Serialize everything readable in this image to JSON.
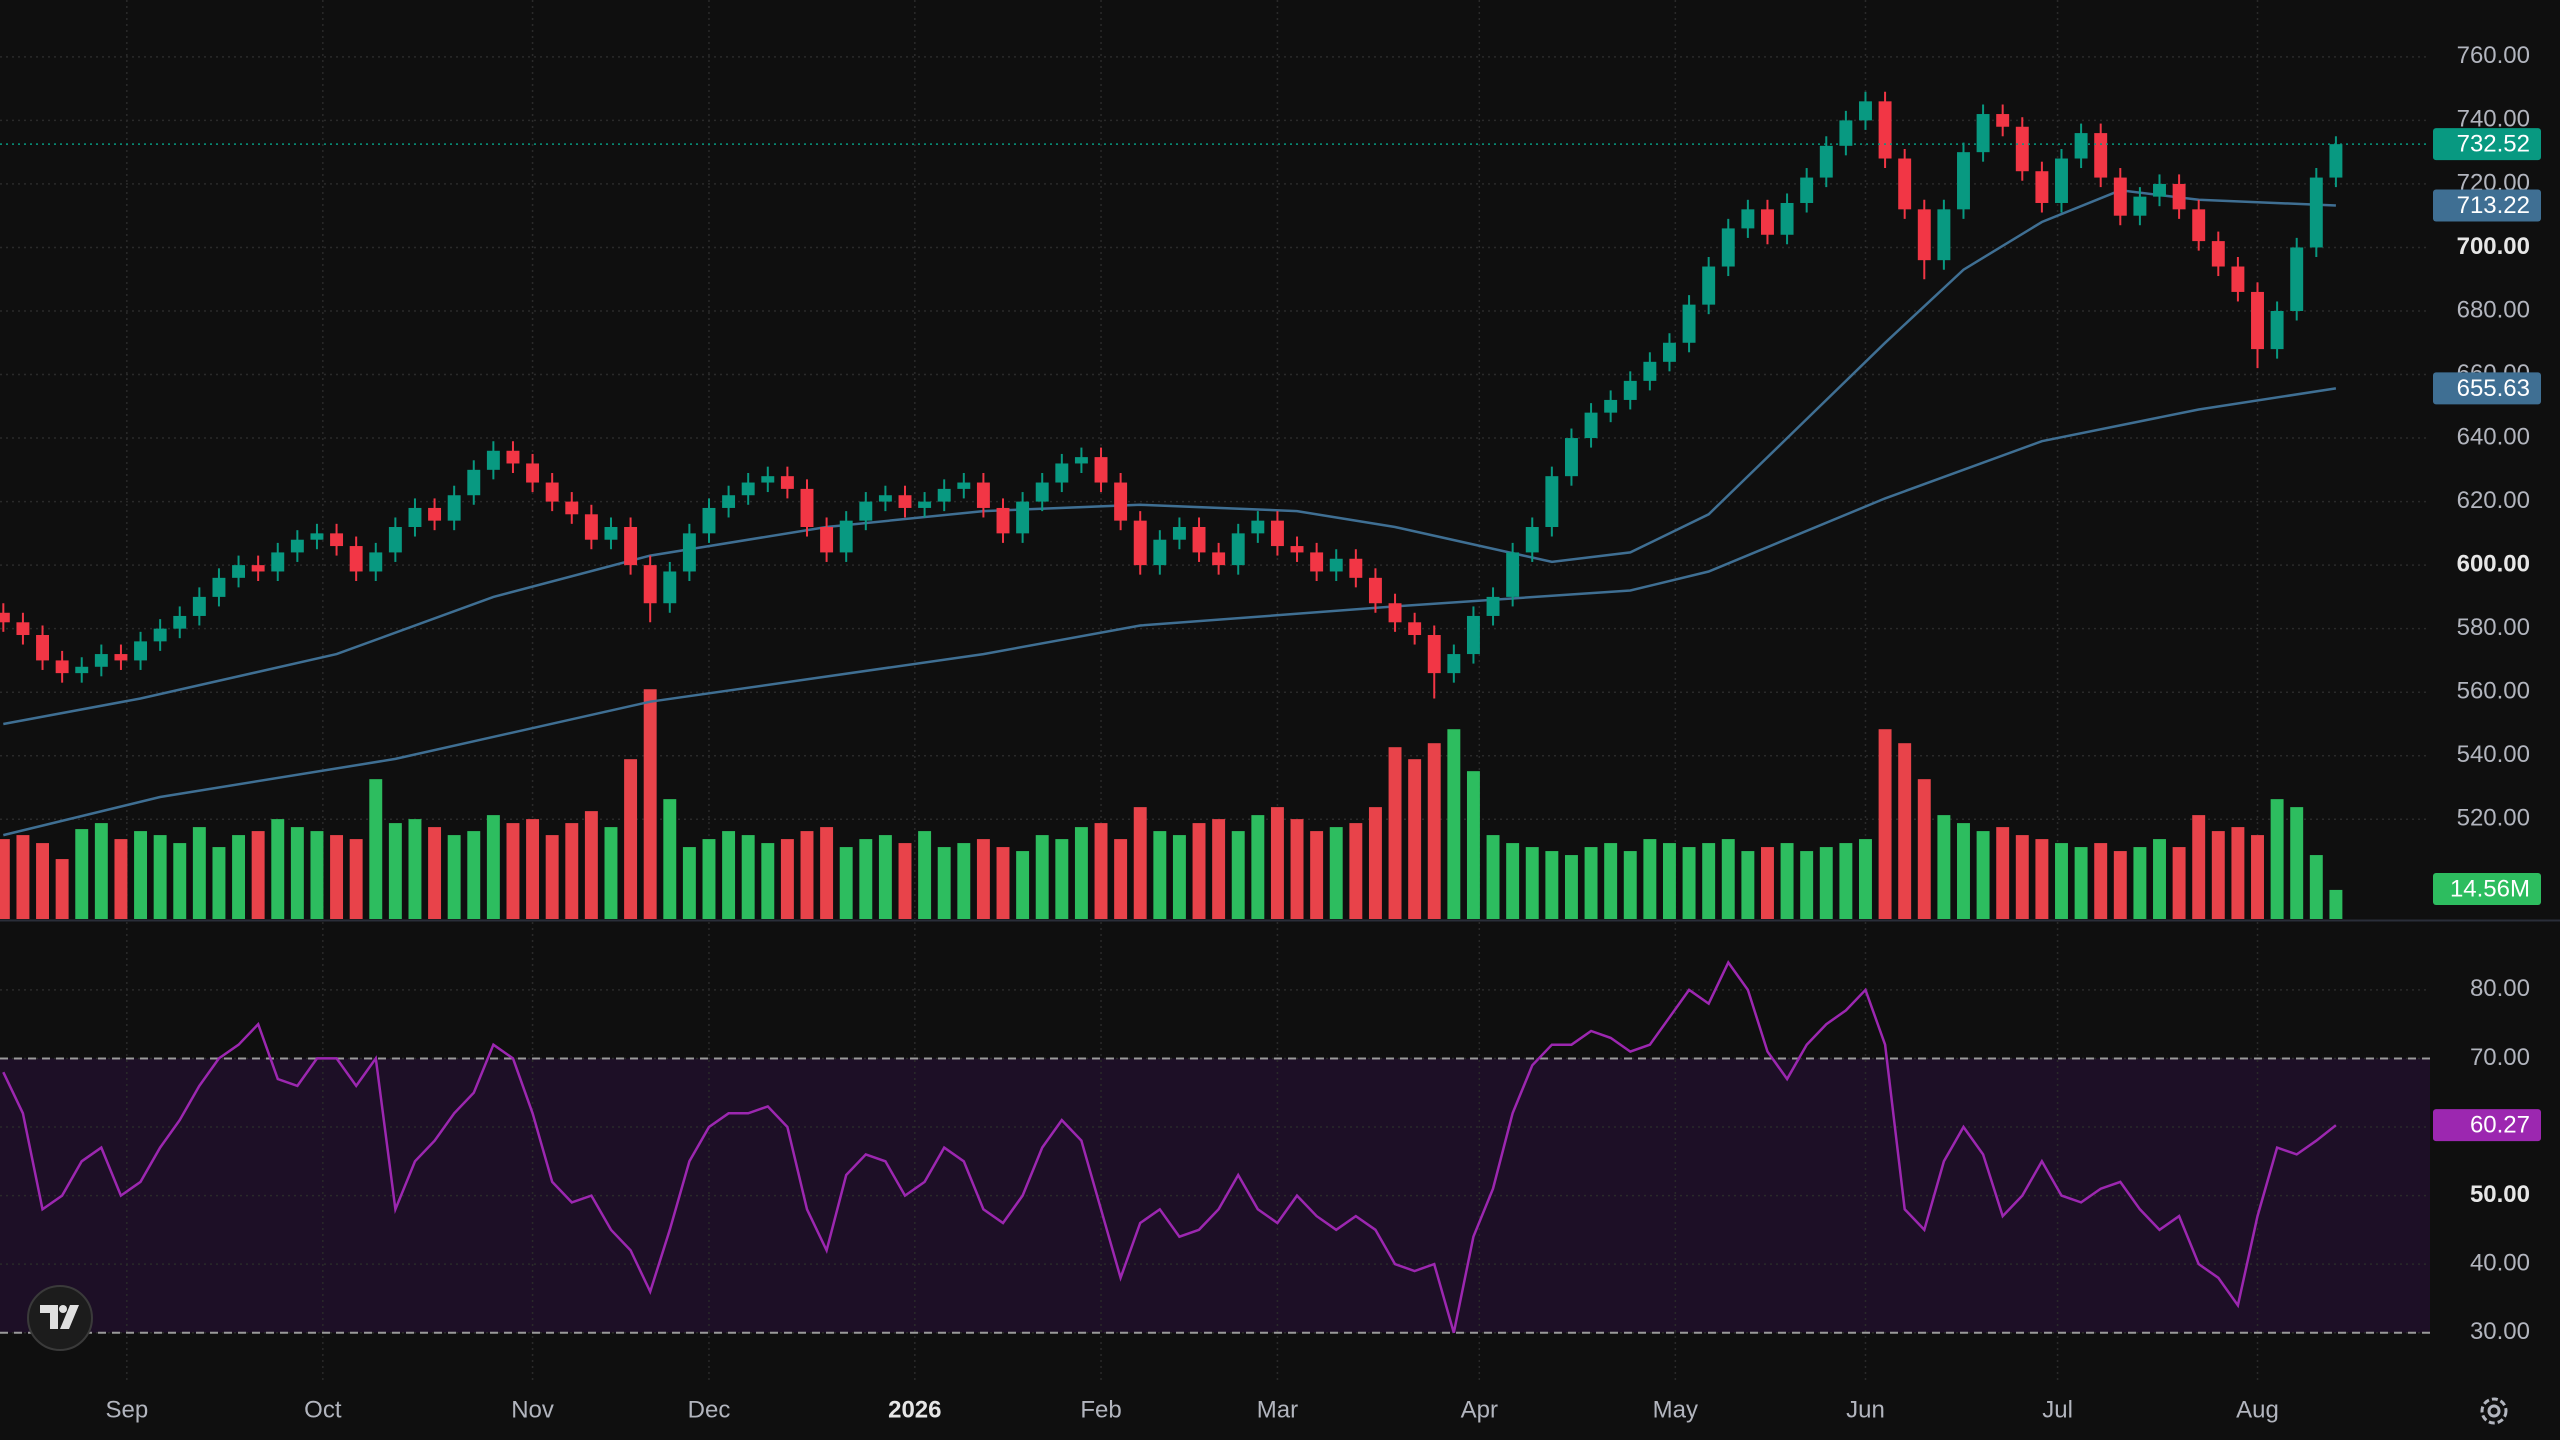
{
  "chart_data": [
    {
      "type": "candlestick",
      "open": [
        585,
        582,
        578,
        570,
        566,
        568,
        572,
        570,
        576,
        580,
        584,
        590,
        596,
        600,
        598,
        604,
        608,
        610,
        606,
        598,
        604,
        612,
        618,
        614,
        622,
        630,
        636,
        632,
        626,
        620,
        616,
        608,
        612,
        600,
        588,
        598,
        610,
        618,
        622,
        626,
        628,
        624,
        612,
        604,
        614,
        620,
        622,
        618,
        620,
        624,
        626,
        618,
        610,
        620,
        626,
        632,
        634,
        626,
        614,
        600,
        608,
        612,
        604,
        600,
        610,
        614,
        606,
        604,
        598,
        602,
        596,
        588,
        582,
        578,
        566,
        572,
        584,
        590,
        604,
        612,
        628,
        640,
        648,
        652,
        658,
        664,
        670,
        682,
        694,
        706,
        712,
        704,
        714,
        722,
        732,
        740,
        746,
        728,
        712,
        696,
        712,
        730,
        742,
        738,
        724,
        714,
        728,
        736,
        722,
        710,
        716,
        720,
        712,
        702,
        694,
        686,
        668,
        680,
        700,
        722
      ],
      "high": [
        588,
        585,
        581,
        573,
        571,
        575,
        575,
        579,
        583,
        587,
        593,
        599,
        603,
        603,
        607,
        611,
        613,
        613,
        609,
        607,
        615,
        621,
        621,
        625,
        633,
        639,
        639,
        635,
        629,
        623,
        619,
        615,
        615,
        603,
        601,
        613,
        621,
        625,
        629,
        631,
        631,
        627,
        615,
        617,
        623,
        625,
        625,
        623,
        627,
        629,
        629,
        621,
        623,
        629,
        635,
        637,
        637,
        629,
        617,
        611,
        615,
        615,
        607,
        613,
        617,
        617,
        609,
        607,
        605,
        605,
        599,
        591,
        585,
        581,
        575,
        587,
        593,
        607,
        615,
        631,
        643,
        651,
        655,
        661,
        667,
        673,
        685,
        697,
        709,
        715,
        715,
        717,
        725,
        735,
        743,
        749,
        749,
        731,
        715,
        715,
        733,
        745,
        745,
        741,
        727,
        731,
        739,
        739,
        725,
        719,
        723,
        723,
        715,
        705,
        697,
        689,
        683,
        703,
        725,
        735
      ],
      "low": [
        579,
        575,
        567,
        563,
        563,
        565,
        567,
        567,
        573,
        577,
        581,
        587,
        593,
        595,
        595,
        601,
        605,
        603,
        595,
        595,
        601,
        609,
        611,
        611,
        619,
        627,
        629,
        623,
        617,
        613,
        605,
        605,
        597,
        582,
        585,
        595,
        607,
        615,
        619,
        623,
        621,
        609,
        601,
        601,
        611,
        617,
        615,
        615,
        617,
        621,
        615,
        607,
        607,
        617,
        623,
        629,
        623,
        611,
        597,
        597,
        605,
        601,
        597,
        597,
        607,
        603,
        601,
        595,
        595,
        593,
        585,
        579,
        575,
        558,
        563,
        569,
        581,
        587,
        601,
        609,
        625,
        637,
        645,
        649,
        655,
        661,
        667,
        679,
        691,
        703,
        701,
        701,
        711,
        719,
        729,
        737,
        725,
        709,
        690,
        693,
        709,
        727,
        735,
        721,
        711,
        711,
        725,
        719,
        707,
        707,
        713,
        709,
        699,
        691,
        683,
        662,
        665,
        677,
        697,
        719
      ],
      "close": [
        582,
        578,
        570,
        566,
        568,
        572,
        570,
        576,
        580,
        584,
        590,
        596,
        600,
        598,
        604,
        608,
        610,
        606,
        598,
        604,
        612,
        618,
        614,
        622,
        630,
        636,
        632,
        626,
        620,
        616,
        608,
        612,
        600,
        588,
        598,
        610,
        618,
        622,
        626,
        628,
        624,
        612,
        604,
        614,
        620,
        622,
        618,
        620,
        624,
        626,
        618,
        610,
        620,
        626,
        632,
        634,
        626,
        614,
        600,
        608,
        612,
        604,
        600,
        610,
        614,
        606,
        604,
        598,
        602,
        596,
        588,
        582,
        578,
        566,
        572,
        584,
        590,
        604,
        612,
        628,
        640,
        648,
        652,
        658,
        664,
        670,
        682,
        694,
        706,
        712,
        704,
        714,
        722,
        732,
        740,
        746,
        728,
        712,
        696,
        712,
        730,
        742,
        738,
        724,
        714,
        728,
        736,
        722,
        710,
        716,
        720,
        712,
        702,
        694,
        686,
        668,
        680,
        700,
        722,
        732.52
      ],
      "up_color": "#089981",
      "down_color": "#f23645",
      "last_price_line": true,
      "overlays": [
        {
          "color": "#3f6f93",
          "x": [
            0,
            7,
            17,
            25,
            33,
            42,
            50,
            58,
            66,
            71,
            79,
            83,
            87,
            91,
            96,
            100,
            104,
            108,
            112,
            119
          ],
          "values": [
            550,
            558,
            572,
            590,
            603,
            612,
            617,
            619,
            617,
            612,
            601,
            604,
            616,
            640,
            670,
            693,
            708,
            718,
            715,
            713.22
          ]
        },
        {
          "color": "#3f6f93",
          "x": [
            0,
            8,
            20,
            33,
            50,
            58,
            71,
            83,
            87,
            96,
            104,
            112,
            119
          ],
          "values": [
            515,
            527,
            539,
            557,
            572,
            581,
            587,
            592,
            598,
            621,
            639,
            649,
            655.63
          ]
        }
      ],
      "volume": {
        "values": [
          40,
          42,
          38,
          30,
          45,
          48,
          40,
          44,
          42,
          38,
          46,
          36,
          42,
          44,
          50,
          46,
          44,
          42,
          40,
          70,
          48,
          50,
          46,
          42,
          44,
          52,
          48,
          50,
          42,
          48,
          54,
          46,
          80,
          115,
          60,
          36,
          40,
          44,
          42,
          38,
          40,
          44,
          46,
          36,
          40,
          42,
          38,
          44,
          36,
          38,
          40,
          36,
          34,
          42,
          40,
          46,
          48,
          40,
          56,
          44,
          42,
          48,
          50,
          44,
          52,
          56,
          50,
          44,
          46,
          48,
          56,
          86,
          80,
          88,
          95,
          74,
          42,
          38,
          36,
          34,
          32,
          36,
          38,
          34,
          40,
          38,
          36,
          38,
          40,
          34,
          36,
          38,
          34,
          36,
          38,
          40,
          95,
          88,
          70,
          52,
          48,
          44,
          46,
          42,
          40,
          38,
          36,
          38,
          34,
          36,
          40,
          36,
          52,
          44,
          46,
          42,
          60,
          56,
          32,
          14.56
        ],
        "value_labels": {
          "119": "14.56M"
        },
        "up_color": "#2dbd5f",
        "down_color": "#e8434a",
        "vlim": [
          0,
          460
        ]
      },
      "xlim": [
        -0.17,
        123.8
      ],
      "ylim": [
        488.6,
        777.9
      ],
      "yticks": [
        {
          "value": 520,
          "label": "520.00"
        },
        {
          "value": 540,
          "label": "540.00"
        },
        {
          "value": 560,
          "label": "560.00"
        },
        {
          "value": 580,
          "label": "580.00"
        },
        {
          "value": 600,
          "label": "600.00"
        },
        {
          "value": 620,
          "label": "620.00"
        },
        {
          "value": 640,
          "label": "640.00"
        },
        {
          "value": 660,
          "label": "660.00"
        },
        {
          "value": 680,
          "label": "680.00"
        },
        {
          "value": 700,
          "label": "700.00"
        },
        {
          "value": 720,
          "label": "720.00"
        },
        {
          "value": 740,
          "label": "740.00"
        },
        {
          "value": 760,
          "label": "760.00"
        }
      ],
      "major_ticks": [
        600,
        700
      ],
      "grid": true
    },
    {
      "type": "line",
      "values": [
        68,
        62,
        48,
        50,
        55,
        57,
        50,
        52,
        57,
        61,
        66,
        70,
        72,
        75,
        67,
        66,
        70,
        70,
        66,
        70,
        48,
        55,
        58,
        62,
        65,
        72,
        70,
        62,
        52,
        49,
        50,
        45,
        42,
        36,
        45,
        55,
        60,
        62,
        62,
        63,
        60,
        48,
        42,
        53,
        56,
        55,
        50,
        52,
        57,
        55,
        48,
        46,
        50,
        57,
        61,
        58,
        48,
        38,
        46,
        48,
        44,
        45,
        48,
        53,
        48,
        46,
        50,
        47,
        45,
        47,
        45,
        40,
        39,
        40,
        30,
        44,
        51,
        62,
        69,
        72,
        72,
        74,
        73,
        71,
        72,
        76,
        80,
        78,
        84,
        80,
        71,
        67,
        72,
        75,
        77,
        80,
        72,
        48,
        45,
        55,
        60,
        56,
        47,
        50,
        55,
        50,
        49,
        51,
        52,
        48,
        45,
        47,
        40,
        38,
        34,
        47,
        57,
        56,
        58,
        60.27
      ],
      "color": "#9c27b0",
      "band": [
        30,
        70
      ],
      "band_color": "#1d0f26",
      "xlim": [
        -0.17,
        123.8
      ],
      "ylim": [
        23.1,
        89.9
      ],
      "yticks": [
        {
          "value": 30,
          "label": "30.00"
        },
        {
          "value": 40,
          "label": "40.00"
        },
        {
          "value": 50,
          "label": "50.00"
        },
        {
          "value": 60,
          "label": "60.00"
        },
        {
          "value": 70,
          "label": "70.00"
        },
        {
          "value": 80,
          "label": "80.00"
        }
      ],
      "major_ticks": [
        50
      ],
      "grid": true,
      "xticks": [
        {
          "value": 6.3,
          "label": "Sep"
        },
        {
          "value": 16.3,
          "label": "Oct"
        },
        {
          "value": 27,
          "label": "Nov"
        },
        {
          "value": 36,
          "label": "Dec"
        },
        {
          "value": 46.5,
          "label": "2026"
        },
        {
          "value": 56,
          "label": "Feb"
        },
        {
          "value": 65,
          "label": "Mar"
        },
        {
          "value": 75.3,
          "label": "Apr"
        },
        {
          "value": 85.3,
          "label": "May"
        },
        {
          "value": 95,
          "label": "Jun"
        },
        {
          "value": 104.8,
          "label": "Jul"
        },
        {
          "value": 115,
          "label": "Aug"
        }
      ],
      "major_xticks": [
        46.5
      ]
    }
  ]
}
